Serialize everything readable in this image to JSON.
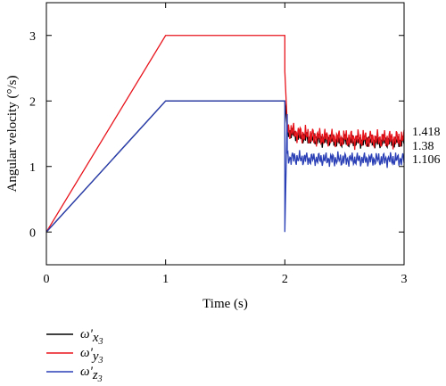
{
  "chart_data": {
    "type": "line",
    "title": "",
    "xlabel": "Time (s)",
    "ylabel": "Angular velocity (°/s)",
    "xlim": [
      0,
      3
    ],
    "ylim": [
      -0.5,
      3.5
    ],
    "xticks": [
      "0",
      "1",
      "2",
      "3"
    ],
    "yticks": [
      "0",
      "1",
      "2",
      "3"
    ],
    "grid": false,
    "legend_position": "bottom-left",
    "annotations": [
      "1.418",
      "1.38",
      "1.106"
    ],
    "series": [
      {
        "name": "ω'x3",
        "label_base": "ω'",
        "label_sub1": "x",
        "label_sub2": "3",
        "color": "#000000",
        "mean_after_2s": 1.38,
        "x": [
          0,
          1,
          2,
          2.02,
          2.1,
          2.2,
          2.3,
          2.4,
          2.5,
          2.6,
          2.7,
          2.8,
          2.9,
          3.0
        ],
        "y": [
          0,
          2,
          2,
          1.6,
          1.35,
          1.42,
          1.36,
          1.4,
          1.38,
          1.42,
          1.35,
          1.4,
          1.37,
          1.38
        ]
      },
      {
        "name": "ω'y3",
        "label_base": "ω'",
        "label_sub1": "y",
        "label_sub2": "3",
        "color": "#e8141c",
        "mean_after_2s": 1.418,
        "x": [
          0,
          1,
          2,
          2.0,
          2.02,
          2.1,
          2.2,
          2.3,
          2.4,
          2.5,
          2.6,
          2.7,
          2.8,
          2.9,
          3.0
        ],
        "y": [
          0,
          3,
          3,
          2.45,
          1.65,
          1.4,
          1.5,
          1.38,
          1.45,
          1.4,
          1.48,
          1.39,
          1.44,
          1.41,
          1.42
        ]
      },
      {
        "name": "ω'z3",
        "label_base": "ω'",
        "label_sub1": "z",
        "label_sub2": "3",
        "color": "#2a3fb5",
        "mean_after_2s": 1.106,
        "x": [
          0,
          1,
          2,
          2.0,
          2.02,
          2.1,
          2.2,
          2.3,
          2.4,
          2.5,
          2.6,
          2.7,
          2.8,
          2.9,
          3.0
        ],
        "y": [
          0,
          2,
          2,
          0.0,
          1.8,
          1.1,
          1.15,
          1.05,
          1.12,
          1.08,
          1.14,
          1.06,
          1.11,
          1.09,
          1.1
        ]
      }
    ]
  }
}
